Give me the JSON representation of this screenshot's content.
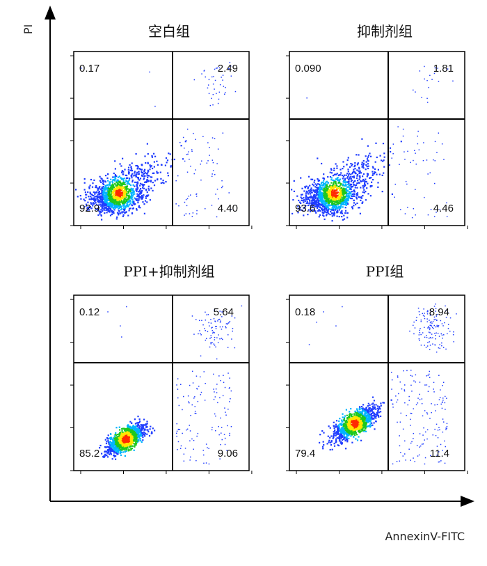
{
  "chart_data": {
    "type": "scatter",
    "subtype": "flow-cytometry-quadrant-dot-plot",
    "xlabel": "AnnexinV-FITC",
    "ylabel": "PI",
    "log_scale": true,
    "color_scale": [
      "#1f3cff",
      "#00b4ff",
      "#1ec81e",
      "#ffe600",
      "#ff2a00"
    ],
    "panels": [
      {
        "title": "空白组",
        "quadrants": {
          "upper_left": "0.17",
          "upper_right": "2.49",
          "lower_left": "92.9",
          "lower_right": "4.40"
        },
        "population": "centered-low"
      },
      {
        "title": "抑制剂组",
        "quadrants": {
          "upper_left": "0.090",
          "upper_right": "1.81",
          "lower_left": "93.6",
          "lower_right": "4.46"
        },
        "population": "centered-low"
      },
      {
        "title": "PPI+抑制剂组",
        "quadrants": {
          "upper_left": "0.12",
          "upper_right": "5.64",
          "lower_left": "85.2",
          "lower_right": "9.06"
        },
        "population": "compact-oval"
      },
      {
        "title": "PPI组",
        "quadrants": {
          "upper_left": "0.18",
          "upper_right": "8.94",
          "lower_left": "79.4",
          "lower_right": "11.4"
        },
        "population": "diagonal"
      }
    ]
  }
}
